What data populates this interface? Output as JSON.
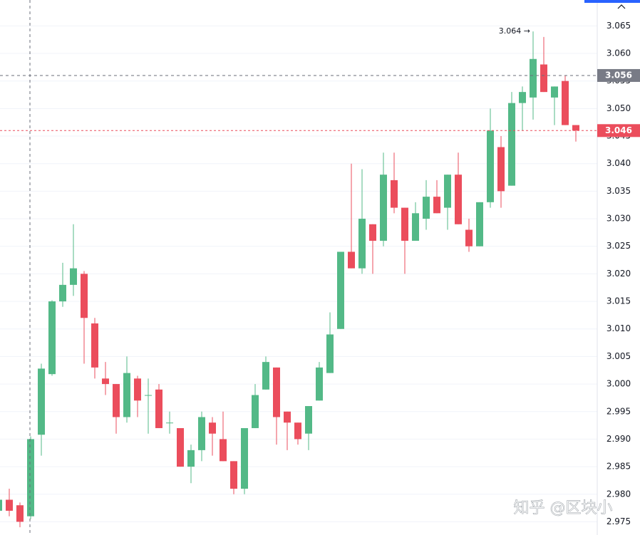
{
  "chart_data": {
    "type": "candlestick",
    "ylim": [
      2.9726,
      3.0697
    ],
    "yticks": [
      2.975,
      {
        "value": 2.98,
        "label": "2.980"
      },
      2.985,
      {
        "value": 2.99,
        "label": "2.990"
      },
      2.995,
      {
        "value": 3.0,
        "label": "3.000"
      },
      3.005,
      {
        "value": 3.01,
        "label": "3.010"
      },
      3.015,
      {
        "value": 3.02,
        "label": "3.020"
      },
      3.025,
      {
        "value": 3.03,
        "label": "3.030"
      },
      3.035,
      {
        "value": 3.04,
        "label": "3.040"
      },
      3.045,
      {
        "value": 3.05,
        "label": "3.050"
      },
      3.055,
      {
        "value": 3.06,
        "label": "3.060"
      },
      3.065
    ],
    "grid": true,
    "up_color": "#53b987",
    "down_color": "#eb4d5c",
    "crosshair_price": 3.056,
    "last_price": 3.046,
    "high_annotation": "3.064 →",
    "watermark": "知乎 @区块小",
    "open": [
      2.977,
      2.979,
      2.978,
      2.976,
      2.9908,
      3.0018,
      3.015,
      3.018,
      3.02,
      3.011,
      3.001,
      3.0,
      2.994,
      3.001,
      2.998,
      2.999,
      2.993,
      2.992,
      2.985,
      2.988,
      2.993,
      2.99,
      2.986,
      2.981,
      2.992,
      2.999,
      3.003,
      2.995,
      2.993,
      2.991,
      2.997,
      3.002,
      3.01,
      3.024,
      3.021,
      3.029,
      3.026,
      3.037,
      3.032,
      3.026,
      3.03,
      3.034,
      3.032,
      3.038,
      3.028,
      3.025,
      3.033,
      3.043,
      3.036,
      3.051,
      3.052,
      3.058,
      3.052,
      3.055,
      3.047
    ],
    "high": [
      2.98,
      2.981,
      2.9785,
      2.9905,
      3.0037,
      3.0152,
      3.022,
      3.029,
      3.0205,
      3.012,
      3.004,
      3.0,
      3.005,
      3.0015,
      3.001,
      3.0,
      2.995,
      2.992,
      2.989,
      2.995,
      2.994,
      2.995,
      2.986,
      2.992,
      3.0,
      3.005,
      3.003,
      2.995,
      2.993,
      2.996,
      3.004,
      3.013,
      3.024,
      3.04,
      3.039,
      3.029,
      3.042,
      3.042,
      3.032,
      3.033,
      3.037,
      3.037,
      3.038,
      3.042,
      3.03,
      3.033,
      3.05,
      3.045,
      3.053,
      3.054,
      3.064,
      3.063,
      3.054,
      3.056,
      3.047
    ],
    "low": [
      2.976,
      2.976,
      2.974,
      2.9755,
      2.987,
      3.0015,
      3.014,
      3.016,
      3.0037,
      3.001,
      2.998,
      2.991,
      2.993,
      2.994,
      2.991,
      2.992,
      2.991,
      2.985,
      2.982,
      2.986,
      2.987,
      2.986,
      2.98,
      2.98,
      2.992,
      2.999,
      2.989,
      2.988,
      2.989,
      2.988,
      2.997,
      3.002,
      3.01,
      3.021,
      3.02,
      3.02,
      3.025,
      3.031,
      3.02,
      3.026,
      3.028,
      3.031,
      3.028,
      3.029,
      3.024,
      3.025,
      3.032,
      3.032,
      3.036,
      3.046,
      3.048,
      3.053,
      3.047,
      3.047,
      3.044
    ],
    "close": [
      2.979,
      2.977,
      2.975,
      2.99,
      3.0028,
      3.015,
      3.018,
      3.021,
      3.012,
      3.003,
      3.0,
      2.994,
      3.002,
      2.997,
      2.998,
      2.992,
      2.993,
      2.985,
      2.988,
      2.994,
      2.991,
      2.986,
      2.981,
      2.992,
      2.998,
      3.004,
      2.994,
      2.993,
      2.99,
      2.996,
      3.003,
      3.009,
      3.024,
      3.021,
      3.03,
      3.026,
      3.038,
      3.032,
      3.026,
      3.031,
      3.034,
      3.031,
      3.038,
      3.029,
      3.025,
      3.033,
      3.046,
      3.035,
      3.051,
      3.053,
      3.059,
      3.053,
      3.054,
      3.047,
      3.046
    ]
  }
}
